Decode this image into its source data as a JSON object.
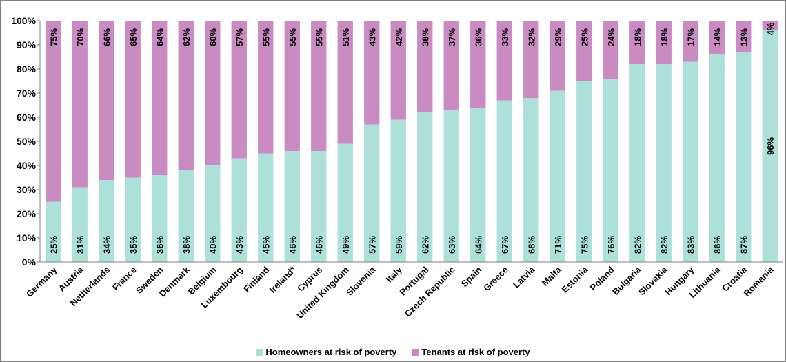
{
  "chart_data": {
    "type": "bar",
    "stacked": true,
    "normalized": true,
    "categories": [
      "Germany",
      "Austria",
      "Netherlands",
      "France",
      "Sweden",
      "Denmark",
      "Belgium",
      "Luxembourg",
      "Finland",
      "Ireland*",
      "Cyprus",
      "United Kingdom",
      "Slovenia",
      "Italy",
      "Portugal",
      "Czech Republic",
      "Spain",
      "Greece",
      "Latvia",
      "Malta",
      "Estonia",
      "Poland",
      "Bulgaria",
      "Slovakia",
      "Hungary",
      "Lithuania",
      "Croatia",
      "Romania"
    ],
    "series": [
      {
        "name": "Homeowners at risk of poverty",
        "color": "#aee0da",
        "values": [
          25,
          31,
          34,
          35,
          36,
          38,
          40,
          43,
          45,
          46,
          46,
          49,
          57,
          59,
          62,
          63,
          64,
          67,
          68,
          71,
          75,
          76,
          82,
          82,
          83,
          86,
          87,
          96
        ],
        "labels": [
          "25%",
          "31%",
          "34%",
          "35%",
          "36%",
          "38%",
          "40%",
          "43%",
          "45%",
          "46%",
          "46%",
          "49%",
          "57%",
          "59%",
          "62%",
          "63%",
          "64%",
          "67%",
          "68%",
          "71%",
          "75%",
          "76%",
          "82%",
          "82%",
          "83%",
          "86%",
          "87%",
          "96%"
        ]
      },
      {
        "name": "Tenants at risk of poverty",
        "color": "#c98bc2",
        "values": [
          75,
          70,
          66,
          65,
          64,
          62,
          60,
          57,
          55,
          55,
          55,
          51,
          43,
          42,
          38,
          37,
          36,
          33,
          32,
          29,
          25,
          24,
          18,
          18,
          17,
          14,
          13,
          4
        ],
        "labels": [
          "75%",
          "70%",
          "66%",
          "65%",
          "64%",
          "62%",
          "60%",
          "57%",
          "55%",
          "55%",
          "55%",
          "51%",
          "43%",
          "42%",
          "38%",
          "37%",
          "36%",
          "33%",
          "32%",
          "29%",
          "25%",
          "24%",
          "18%",
          "18%",
          "17%",
          "14%",
          "13%",
          "4%"
        ]
      }
    ],
    "yticks": [
      "0%",
      "10%",
      "20%",
      "30%",
      "40%",
      "50%",
      "60%",
      "70%",
      "80%",
      "90%",
      "100%"
    ],
    "ylim": [
      0,
      100
    ],
    "grid": false,
    "legend_position": "bottom"
  }
}
